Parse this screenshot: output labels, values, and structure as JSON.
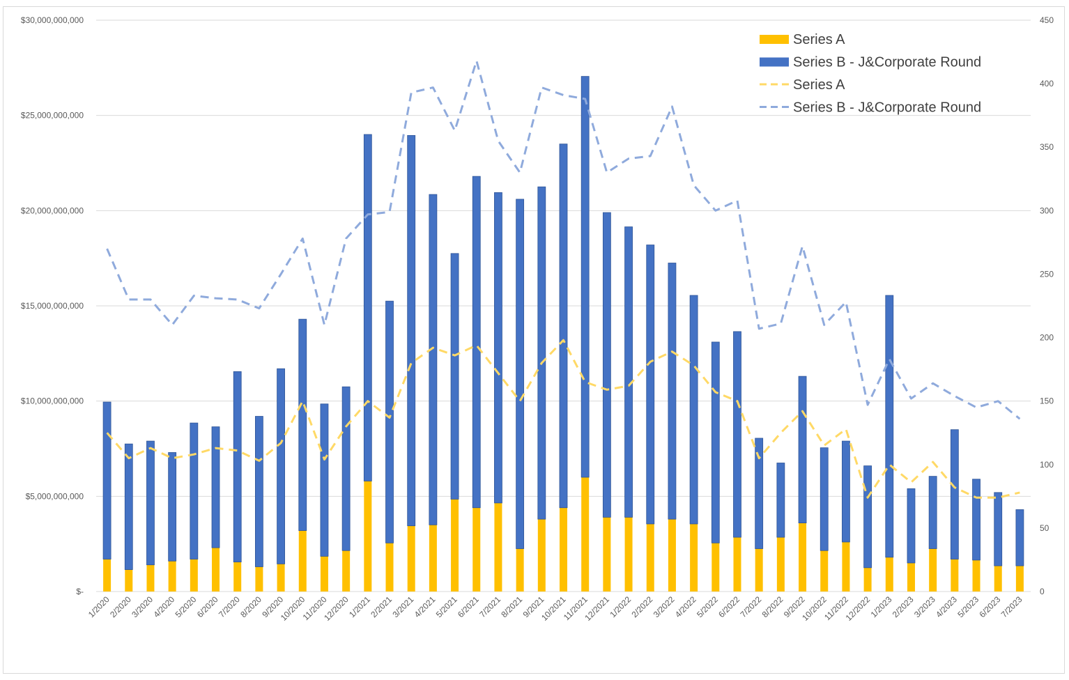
{
  "chart_data": {
    "type": "bar",
    "stacked": true,
    "title": "",
    "xlabel": "",
    "ylabel": "",
    "categories": [
      "1/2020",
      "2/2020",
      "3/2020",
      "4/2020",
      "5/2020",
      "6/2020",
      "7/2020",
      "8/2020",
      "9/2020",
      "10/2020",
      "11/2020",
      "12/2020",
      "1/2021",
      "2/2021",
      "3/2021",
      "4/2021",
      "5/2021",
      "6/2021",
      "7/2021",
      "8/2021",
      "9/2021",
      "10/2021",
      "11/2021",
      "12/2021",
      "1/2022",
      "2/2022",
      "3/2022",
      "4/2022",
      "5/2022",
      "6/2022",
      "7/2022",
      "8/2022",
      "9/2022",
      "10/2022",
      "11/2022",
      "12/2022",
      "1/2023",
      "2/2023",
      "3/2023",
      "4/2023",
      "5/2023",
      "6/2023",
      "7/2023"
    ],
    "series": [
      {
        "name": "Series A",
        "kind": "bar",
        "axis": "left",
        "color": "#FFC000",
        "values": [
          1700000000,
          1150000000,
          1400000000,
          1600000000,
          1700000000,
          2300000000,
          1550000000,
          1300000000,
          1450000000,
          3200000000,
          1850000000,
          2150000000,
          5800000000,
          2550000000,
          3450000000,
          3500000000,
          4850000000,
          4400000000,
          4650000000,
          2250000000,
          3800000000,
          4400000000,
          6000000000,
          3900000000,
          3900000000,
          3550000000,
          3800000000,
          3550000000,
          2550000000,
          2850000000,
          2250000000,
          2850000000,
          3600000000,
          2150000000,
          2600000000,
          1250000000,
          1800000000,
          1500000000,
          2250000000,
          1700000000,
          1650000000,
          1350000000,
          1350000000
        ]
      },
      {
        "name": "Series B - J&Corporate Round",
        "kind": "bar",
        "axis": "left",
        "color": "#4472C4",
        "values": [
          8250000000,
          6600000000,
          6500000000,
          5700000000,
          7150000000,
          6350000000,
          10000000000,
          7900000000,
          10250000000,
          11100000000,
          8000000000,
          8600000000,
          18200000000,
          12700000000,
          20500000000,
          17350000000,
          12900000000,
          17400000000,
          16300000000,
          18350000000,
          17450000000,
          19100000000,
          21050000000,
          16000000000,
          15250000000,
          14650000000,
          13450000000,
          12000000000,
          10550000000,
          10800000000,
          5800000000,
          3900000000,
          7700000000,
          5400000000,
          5300000000,
          5350000000,
          13750000000,
          3900000000,
          3800000000,
          6800000000,
          4250000000,
          3850000000,
          2950000000
        ]
      },
      {
        "name": "Series A",
        "kind": "line",
        "dashed": true,
        "axis": "right",
        "color": "#FFD966",
        "values": [
          125,
          105,
          113,
          105,
          108,
          113,
          111,
          103,
          117,
          150,
          104,
          130,
          150,
          137,
          180,
          192,
          186,
          194,
          172,
          150,
          180,
          198,
          165,
          159,
          162,
          181,
          189,
          178,
          157,
          150,
          105,
          125,
          142,
          115,
          128,
          74,
          100,
          86,
          102,
          82,
          74,
          74,
          78
        ]
      },
      {
        "name": "Series B - J&Corporate Round",
        "kind": "line",
        "dashed": true,
        "axis": "right",
        "color": "#8FAADC",
        "values": [
          270,
          230,
          230,
          210,
          233,
          231,
          230,
          223,
          250,
          278,
          210,
          278,
          297,
          299,
          393,
          397,
          363,
          418,
          355,
          330,
          397,
          391,
          388,
          330,
          341,
          343,
          382,
          320,
          300,
          308,
          207,
          211,
          272,
          210,
          228,
          147,
          183,
          152,
          164,
          154,
          145,
          150,
          136
        ]
      }
    ],
    "y_left": {
      "min": 0,
      "max": 30000000000,
      "step": 5000000000,
      "tick_labels": [
        "$-",
        "$5,000,000,000",
        "$10,000,000,000",
        "$15,000,000,000",
        "$20,000,000,000",
        "$25,000,000,000",
        "$30,000,000,000"
      ]
    },
    "y_right": {
      "min": 0,
      "max": 450,
      "step": 50,
      "tick_labels": [
        "0",
        "50",
        "100",
        "150",
        "200",
        "250",
        "300",
        "350",
        "400",
        "450"
      ]
    },
    "grid": true,
    "legend": {
      "position": "top-right",
      "entries": [
        {
          "label": "Series A",
          "kind": "bar",
          "color": "#FFC000"
        },
        {
          "label": "Series B - J&Corporate Round",
          "kind": "bar",
          "color": "#4472C4"
        },
        {
          "label": "Series A",
          "kind": "line",
          "color": "#FFD966"
        },
        {
          "label": "Series B - J&Corporate Round",
          "kind": "line",
          "color": "#8FAADC"
        }
      ]
    }
  }
}
